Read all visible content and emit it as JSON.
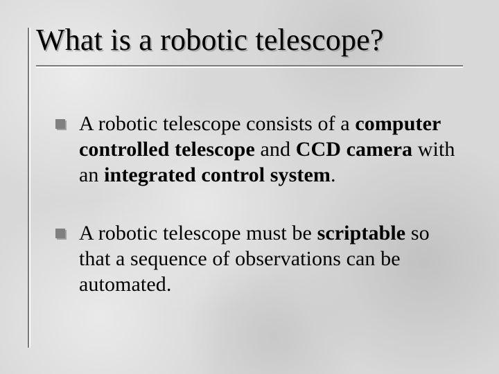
{
  "slide": {
    "title": "What is a robotic telescope?",
    "bullets": [
      {
        "segments": [
          {
            "text": "A robotic telescope consists of a ",
            "bold": false
          },
          {
            "text": "computer controlled telescope",
            "bold": true
          },
          {
            "text": " and ",
            "bold": false
          },
          {
            "text": "CCD camera",
            "bold": true
          },
          {
            "text": " with an ",
            "bold": false
          },
          {
            "text": "integrated control system",
            "bold": true
          },
          {
            "text": ".",
            "bold": false
          }
        ]
      },
      {
        "segments": [
          {
            "text": "A robotic telescope must be ",
            "bold": false
          },
          {
            "text": "scriptable",
            "bold": true
          },
          {
            "text": " so that a sequence of observations can be automated.",
            "bold": false
          }
        ]
      }
    ]
  },
  "style": {
    "background_color": "#d8d8d8",
    "text_color": "#000000",
    "title_fontsize": 44,
    "body_fontsize": 30,
    "bullet_marker_color": "#808080",
    "rule_dark": "#7a7a7a",
    "rule_light": "#ffffff",
    "title_shadow": "rgba(160,160,160,0.8)"
  }
}
